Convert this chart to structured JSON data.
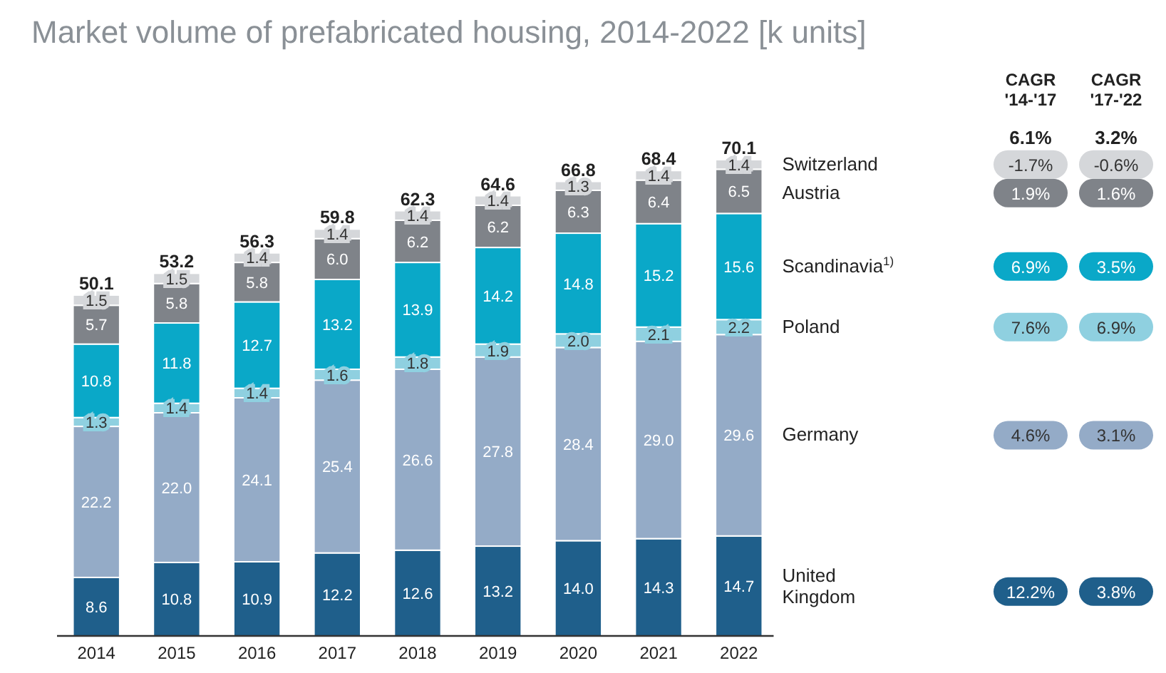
{
  "chart_data": {
    "type": "bar",
    "stacked": true,
    "title": "Market volume of prefabricated housing, 2014-2022 [k units]",
    "categories": [
      "2014",
      "2015",
      "2016",
      "2017",
      "2018",
      "2019",
      "2020",
      "2021",
      "2022"
    ],
    "series": [
      {
        "name": "United Kingdom",
        "color": "#1f5f8b",
        "values": [
          8.6,
          10.8,
          10.9,
          12.2,
          12.6,
          13.2,
          14.0,
          14.3,
          14.7
        ],
        "value_labels": [
          "8.6",
          "10.8",
          "10.9",
          "12.2",
          "12.6",
          "13.2",
          "14.0",
          "14.3",
          "14.7"
        ]
      },
      {
        "name": "Germany",
        "color": "#94abc7",
        "values": [
          22.2,
          22.0,
          24.1,
          25.4,
          26.6,
          27.8,
          28.4,
          29.0,
          29.6
        ],
        "value_labels": [
          "22.2",
          "22.0",
          "24.1",
          "25.4",
          "26.6",
          "27.8",
          "28.4",
          "29.0",
          "29.6"
        ]
      },
      {
        "name": "Poland",
        "color": "#8fd0e0",
        "values": [
          1.3,
          1.4,
          1.4,
          1.6,
          1.8,
          1.9,
          2.0,
          2.1,
          2.2
        ],
        "value_labels": [
          "1.3",
          "1.4",
          "1.4",
          "1.6",
          "1.8",
          "1.9",
          "2.0",
          "2.1",
          "2.2"
        ]
      },
      {
        "name": "Scandinavia$^{1)}$",
        "color": "#0aa8c8",
        "values": [
          10.8,
          11.8,
          12.7,
          13.2,
          13.9,
          14.2,
          14.8,
          15.2,
          15.6
        ],
        "value_labels": [
          "10.8",
          "11.8",
          "12.7",
          "13.2",
          "13.9",
          "14.2",
          "14.8",
          "15.2",
          "15.6"
        ]
      },
      {
        "name": "Austria",
        "color": "#7f8389",
        "values": [
          5.7,
          5.8,
          5.8,
          6.0,
          6.2,
          6.2,
          6.3,
          6.4,
          6.5
        ],
        "value_labels": [
          "5.7",
          "5.8",
          "5.8",
          "6.0",
          "6.2",
          "6.2",
          "6.3",
          "6.4",
          "6.5"
        ]
      },
      {
        "name": "Switzerland",
        "color": "#d5d7da",
        "values": [
          1.5,
          1.5,
          1.4,
          1.4,
          1.4,
          1.4,
          1.3,
          1.4,
          1.4
        ],
        "value_labels": [
          "1.5",
          "1.5",
          "1.4",
          "1.4",
          "1.4",
          "1.4",
          "1.3",
          "1.4",
          "1.4"
        ]
      }
    ],
    "totals": [
      "50.1",
      "53.2",
      "56.3",
      "59.8",
      "62.3",
      "64.6",
      "66.8",
      "68.4",
      "70.1"
    ],
    "legend": "right",
    "annotations": [
      "CAGR\n'14-'17",
      "CAGR\n'17-'22",
      "6.1%",
      "3.2%",
      "12.2%",
      "3.8%",
      "4.6%",
      "3.1%",
      "7.6%",
      "6.9%",
      "6.9%",
      "3.5%",
      "1.9%",
      "1.6%",
      "-1.7%",
      "-0.6%"
    ]
  }
}
